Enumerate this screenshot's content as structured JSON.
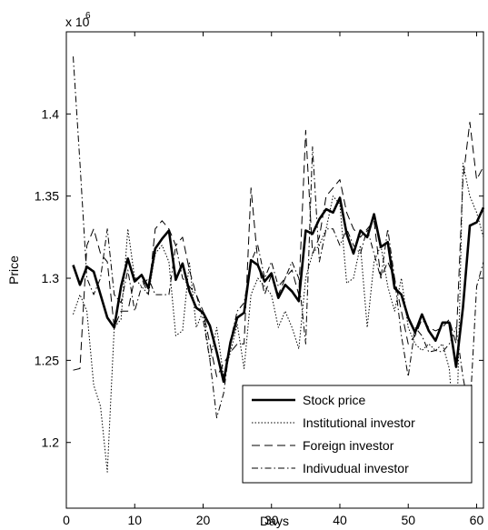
{
  "chart_data": {
    "type": "line",
    "title": "",
    "xlabel": "Days",
    "ylabel": "Price",
    "y_exponent_label": "x 10",
    "y_exponent_power": "6",
    "xlim": [
      0,
      61
    ],
    "ylim": [
      1.16,
      1.45
    ],
    "xticks": [
      0,
      10,
      20,
      30,
      40,
      50,
      60
    ],
    "yticks": [
      1.2,
      1.25,
      1.3,
      1.35,
      1.4
    ],
    "ytick_labels": [
      "1.2",
      "1.25",
      "1.3",
      "1.35",
      "1.4"
    ],
    "grid": false,
    "legend_position": "bottom-right",
    "series": [
      {
        "name": "Stock price",
        "style": "solid-thick",
        "color": "#000000",
        "x": [
          1,
          2,
          3,
          4,
          5,
          6,
          7,
          8,
          9,
          10,
          11,
          12,
          13,
          14,
          15,
          16,
          17,
          18,
          19,
          20,
          21,
          22,
          23,
          24,
          25,
          26,
          27,
          28,
          29,
          30,
          31,
          32,
          33,
          34,
          35,
          36,
          37,
          38,
          39,
          40,
          41,
          42,
          43,
          44,
          45,
          46,
          47,
          48,
          49,
          50,
          51,
          52,
          53,
          54,
          55,
          56,
          57,
          58,
          59,
          60,
          61
        ],
        "values": [
          1.308,
          1.296,
          1.307,
          1.304,
          1.29,
          1.276,
          1.27,
          1.295,
          1.312,
          1.298,
          1.302,
          1.294,
          1.318,
          1.324,
          1.329,
          1.299,
          1.309,
          1.292,
          1.282,
          1.279,
          1.271,
          1.255,
          1.237,
          1.261,
          1.276,
          1.279,
          1.311,
          1.308,
          1.298,
          1.303,
          1.288,
          1.296,
          1.292,
          1.286,
          1.329,
          1.327,
          1.336,
          1.342,
          1.34,
          1.349,
          1.327,
          1.315,
          1.329,
          1.325,
          1.339,
          1.319,
          1.322,
          1.294,
          1.29,
          1.276,
          1.267,
          1.278,
          1.268,
          1.262,
          1.273,
          1.273,
          1.246,
          1.282,
          1.332,
          1.334,
          1.343
        ]
      },
      {
        "name": "Institutional investor",
        "style": "dotted",
        "color": "#000000",
        "x": [
          1,
          2,
          3,
          4,
          5,
          6,
          7,
          8,
          9,
          10,
          11,
          12,
          13,
          14,
          15,
          16,
          17,
          18,
          19,
          20,
          21,
          22,
          23,
          24,
          25,
          26,
          27,
          28,
          29,
          30,
          31,
          32,
          33,
          34,
          35,
          36,
          37,
          38,
          39,
          40,
          41,
          42,
          43,
          44,
          45,
          46,
          47,
          48,
          49,
          50,
          51,
          52,
          53,
          54,
          55,
          56,
          57,
          58,
          59,
          60,
          61
        ],
        "values": [
          1.278,
          1.29,
          1.28,
          1.235,
          1.222,
          1.182,
          1.27,
          1.275,
          1.33,
          1.3,
          1.295,
          1.29,
          1.315,
          1.32,
          1.31,
          1.265,
          1.268,
          1.31,
          1.27,
          1.28,
          1.25,
          1.27,
          1.24,
          1.255,
          1.272,
          1.245,
          1.29,
          1.3,
          1.295,
          1.29,
          1.27,
          1.28,
          1.27,
          1.257,
          1.3,
          1.315,
          1.32,
          1.33,
          1.35,
          1.345,
          1.297,
          1.3,
          1.32,
          1.27,
          1.31,
          1.32,
          1.295,
          1.28,
          1.3,
          1.27,
          1.26,
          1.256,
          1.26,
          1.256,
          1.26,
          1.245,
          1.19,
          1.37,
          1.35,
          1.34,
          1.325
        ]
      },
      {
        "name": "Foreign investor",
        "style": "dashed-long",
        "color": "#000000",
        "x": [
          1,
          2,
          3,
          4,
          5,
          6,
          7,
          8,
          9,
          10,
          11,
          12,
          13,
          14,
          15,
          16,
          17,
          18,
          19,
          20,
          21,
          22,
          23,
          24,
          25,
          26,
          27,
          28,
          29,
          30,
          31,
          32,
          33,
          34,
          35,
          36,
          37,
          38,
          39,
          40,
          41,
          42,
          43,
          44,
          45,
          46,
          47,
          48,
          49,
          50,
          51,
          52,
          53,
          54,
          55,
          56,
          57,
          58,
          59,
          60,
          61
        ],
        "values": [
          1.244,
          1.245,
          1.32,
          1.33,
          1.315,
          1.31,
          1.27,
          1.28,
          1.28,
          1.3,
          1.3,
          1.29,
          1.33,
          1.335,
          1.33,
          1.32,
          1.325,
          1.305,
          1.29,
          1.28,
          1.26,
          1.24,
          1.248,
          1.255,
          1.26,
          1.26,
          1.355,
          1.31,
          1.29,
          1.302,
          1.29,
          1.3,
          1.305,
          1.29,
          1.39,
          1.315,
          1.325,
          1.35,
          1.355,
          1.36,
          1.34,
          1.33,
          1.325,
          1.33,
          1.335,
          1.3,
          1.31,
          1.3,
          1.28,
          1.26,
          1.265,
          1.275,
          1.27,
          1.268,
          1.27,
          1.275,
          1.26,
          1.36,
          1.395,
          1.36,
          1.368
        ]
      },
      {
        "name": "Indivudual investor",
        "style": "dash-dot",
        "color": "#000000",
        "x": [
          1,
          2,
          3,
          4,
          5,
          6,
          7,
          8,
          9,
          10,
          11,
          12,
          13,
          14,
          15,
          16,
          17,
          18,
          19,
          20,
          21,
          22,
          23,
          24,
          25,
          26,
          27,
          28,
          29,
          30,
          31,
          32,
          33,
          34,
          35,
          36,
          37,
          38,
          39,
          40,
          41,
          42,
          43,
          44,
          45,
          46,
          47,
          48,
          49,
          50,
          51,
          52,
          53,
          54,
          55,
          56,
          57,
          58,
          59,
          60,
          61
        ],
        "values": [
          1.435,
          1.37,
          1.3,
          1.29,
          1.3,
          1.33,
          1.29,
          1.285,
          1.305,
          1.28,
          1.295,
          1.3,
          1.29,
          1.29,
          1.29,
          1.32,
          1.3,
          1.295,
          1.29,
          1.275,
          1.25,
          1.215,
          1.23,
          1.262,
          1.28,
          1.285,
          1.31,
          1.32,
          1.3,
          1.31,
          1.295,
          1.3,
          1.31,
          1.3,
          1.26,
          1.38,
          1.31,
          1.33,
          1.33,
          1.32,
          1.33,
          1.32,
          1.315,
          1.33,
          1.315,
          1.3,
          1.33,
          1.3,
          1.265,
          1.24,
          1.27,
          1.265,
          1.255,
          1.256,
          1.255,
          1.26,
          1.27,
          1.24,
          1.218,
          1.295,
          1.31
        ]
      }
    ]
  }
}
